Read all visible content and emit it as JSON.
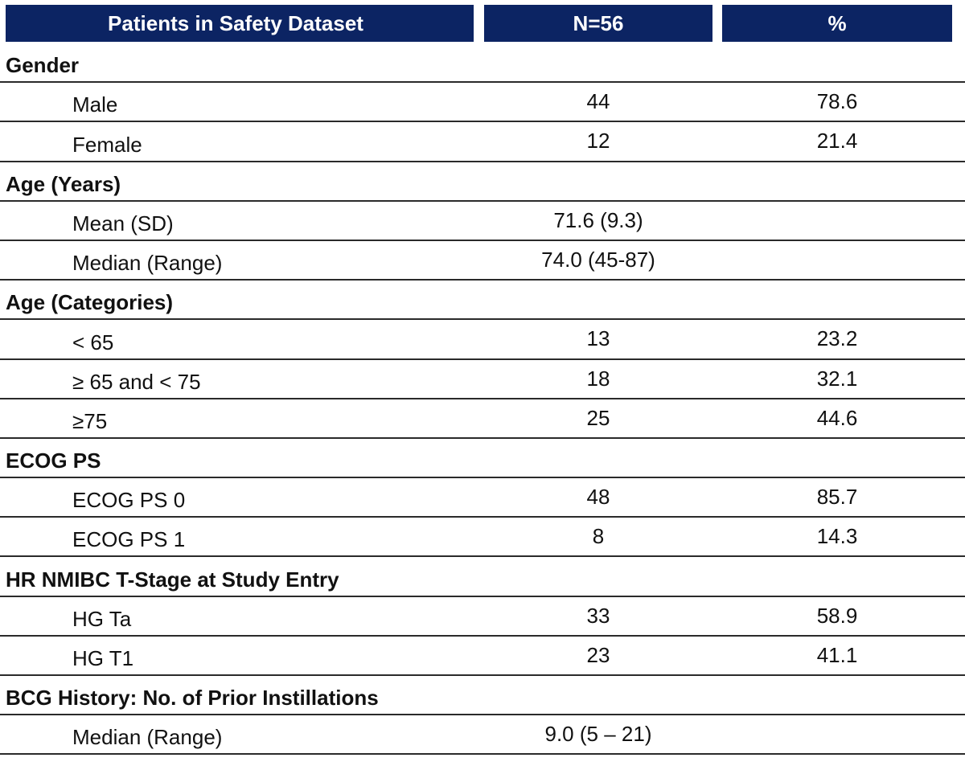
{
  "header": {
    "col1": "Patients in Safety Dataset",
    "col2": "N=56",
    "col3": "%"
  },
  "rows": [
    {
      "type": "section",
      "label": "Gender"
    },
    {
      "type": "item",
      "label": "Male",
      "n": "44",
      "pct": "78.6"
    },
    {
      "type": "item",
      "label": "Female",
      "n": "12",
      "pct": "21.4"
    },
    {
      "type": "section",
      "label": "Age (Years)"
    },
    {
      "type": "item",
      "label": "Mean (SD)",
      "n": "71.6 (9.3)",
      "pct": ""
    },
    {
      "type": "item",
      "label": "Median (Range)",
      "n": "74.0 (45-87)",
      "pct": ""
    },
    {
      "type": "section",
      "label": "Age (Categories)"
    },
    {
      "type": "item",
      "label": "< 65",
      "n": "13",
      "pct": "23.2"
    },
    {
      "type": "item",
      "label": "≥ 65 and < 75",
      "n": "18",
      "pct": "32.1"
    },
    {
      "type": "item",
      "label": "≥75",
      "n": "25",
      "pct": "44.6"
    },
    {
      "type": "section",
      "label": "ECOG PS"
    },
    {
      "type": "item",
      "label": "ECOG PS 0",
      "n": "48",
      "pct": "85.7"
    },
    {
      "type": "item",
      "label": "ECOG PS 1",
      "n": "8",
      "pct": "14.3"
    },
    {
      "type": "section",
      "label": "HR NMIBC T-Stage at Study Entry"
    },
    {
      "type": "item",
      "label": "HG Ta",
      "n": "33",
      "pct": "58.9"
    },
    {
      "type": "item",
      "label": "HG T1",
      "n": "23",
      "pct": "41.1"
    },
    {
      "type": "section",
      "label": "BCG History: No. of Prior Instillations"
    },
    {
      "type": "item",
      "label": "Median (Range)",
      "n": "9.0 (5 – 21)",
      "pct": ""
    }
  ]
}
